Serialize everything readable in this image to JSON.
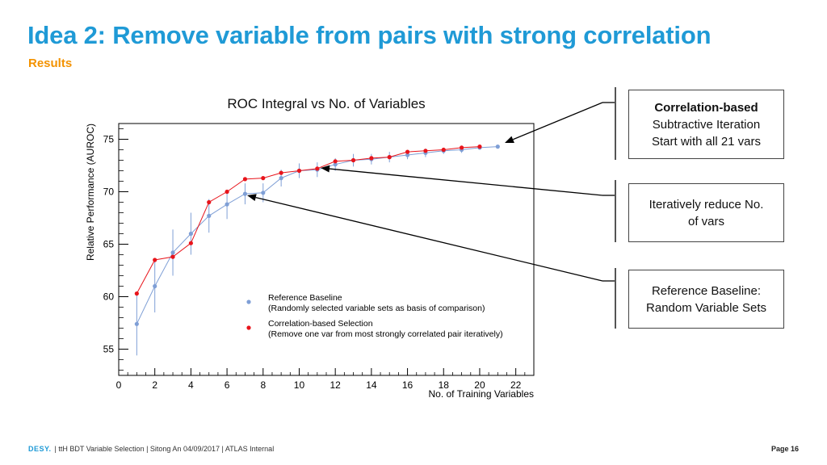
{
  "slide": {
    "title": "Idea 2: Remove variable from pairs with strong correlation",
    "subtitle": "Results"
  },
  "callouts": [
    {
      "lines": [
        {
          "text": "Correlation-based",
          "bold": true
        },
        {
          "text": "Subtractive Iteration",
          "bold": false
        },
        {
          "text": "Start with all 21 vars",
          "bold": false
        }
      ]
    },
    {
      "lines": [
        {
          "text": "Iteratively reduce No.",
          "bold": false
        },
        {
          "text": "of vars",
          "bold": false
        }
      ]
    },
    {
      "lines": [
        {
          "text": "Reference Baseline:",
          "bold": false
        },
        {
          "text": "Random Variable Sets",
          "bold": false
        }
      ]
    }
  ],
  "footer": {
    "logo": "DESY.",
    "text": "| ttH BDT Variable Selection | Sitong An 04/09/2017 | ATLAS Internal",
    "page": "Page 16"
  },
  "colors": {
    "title": "#1f9ad6",
    "subtitle": "#f39200",
    "reference": "#7f9fd6",
    "correlation": "#e8141b"
  },
  "chart_data": {
    "type": "scatter",
    "title": "ROC Integral vs No. of Variables",
    "xlabel": "No. of Training Variables",
    "ylabel": "Relative Performance (AUROC)",
    "xlim": [
      0,
      23
    ],
    "ylim": [
      52.5,
      76.5
    ],
    "xticks": [
      0,
      2,
      4,
      6,
      8,
      10,
      12,
      14,
      16,
      18,
      20,
      22
    ],
    "yticks": [
      55,
      60,
      65,
      70,
      75
    ],
    "legend_position": "lower-center",
    "series": [
      {
        "name": "Reference Baseline",
        "legend_lines": [
          "Reference Baseline",
          "(Randomly selected variable sets as basis of comparison)"
        ],
        "color": "#7f9fd6",
        "x": [
          1,
          2,
          3,
          4,
          5,
          6,
          7,
          8,
          9,
          10,
          11,
          12,
          13,
          14,
          15,
          16,
          17,
          18,
          19,
          20,
          21
        ],
        "y": [
          57.4,
          61.0,
          64.2,
          66.0,
          67.7,
          68.8,
          69.8,
          69.9,
          71.3,
          72.0,
          72.1,
          72.6,
          73.0,
          73.1,
          73.3,
          73.5,
          73.7,
          73.9,
          74.0,
          74.2,
          74.3
        ],
        "yerr": [
          3.0,
          2.5,
          2.2,
          2.0,
          1.6,
          1.4,
          1.0,
          0.9,
          0.8,
          0.7,
          0.7,
          0.6,
          0.6,
          0.5,
          0.5,
          0.4,
          0.4,
          0.3,
          0.3,
          0.2,
          0.0
        ]
      },
      {
        "name": "Correlation-based Selection",
        "legend_lines": [
          "Correlation-based Selection",
          "(Remove one var from most strongly correlated pair iteratively)"
        ],
        "color": "#e8141b",
        "x": [
          1,
          2,
          3,
          4,
          5,
          6,
          7,
          8,
          9,
          10,
          11,
          12,
          13,
          14,
          15,
          16,
          17,
          18,
          19,
          20
        ],
        "y": [
          60.3,
          63.5,
          63.8,
          65.1,
          69.0,
          70.0,
          71.2,
          71.3,
          71.8,
          72.0,
          72.2,
          72.9,
          73.0,
          73.2,
          73.3,
          73.8,
          73.9,
          74.0,
          74.2,
          74.3
        ]
      }
    ]
  }
}
